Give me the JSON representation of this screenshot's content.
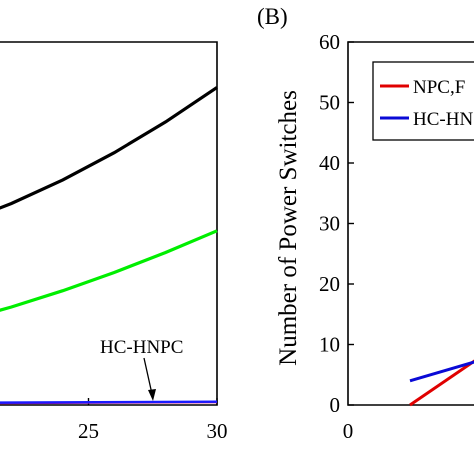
{
  "chart_data": [
    {
      "type": "line",
      "x_ticks": [
        "25",
        "30"
      ],
      "xlim": [
        20,
        30
      ],
      "ylim": [
        0,
        1
      ],
      "series": [
        {
          "color": "#000000",
          "x": [
            20,
            22,
            24,
            26,
            28,
            30
          ],
          "y": [
            0.5,
            0.555,
            0.62,
            0.695,
            0.78,
            0.875
          ]
        },
        {
          "color": "#00ee00",
          "x": [
            20,
            22,
            24,
            26,
            28,
            30
          ],
          "y": [
            0.23,
            0.27,
            0.315,
            0.365,
            0.42,
            0.48
          ]
        },
        {
          "color": "#cc0066",
          "x": [
            20,
            30
          ],
          "y": [
            0.005,
            0.008
          ]
        },
        {
          "color": "#1a1aff",
          "x": [
            20,
            30
          ],
          "y": [
            0.006,
            0.009
          ]
        }
      ],
      "annotation": {
        "text": "HC-HNPC",
        "target": [
          27.8,
          0.008
        ]
      }
    },
    {
      "type": "line",
      "panel_label": "(B)",
      "ylabel": "Number of Power Switches",
      "y_ticks": [
        0,
        10,
        20,
        30,
        40,
        50,
        60
      ],
      "x_ticks": [
        "0"
      ],
      "xlim": [
        0,
        4
      ],
      "ylim": [
        0,
        60
      ],
      "legend": {
        "placement": "top-right"
      },
      "series": [
        {
          "name": "NPC,F",
          "color": "#e00000",
          "x": [
            1,
            3
          ],
          "y": [
            0,
            14
          ]
        },
        {
          "name": "HC-HN",
          "color": "#0a0ad6",
          "x": [
            1,
            3
          ],
          "y": [
            4,
            10
          ]
        }
      ]
    }
  ]
}
